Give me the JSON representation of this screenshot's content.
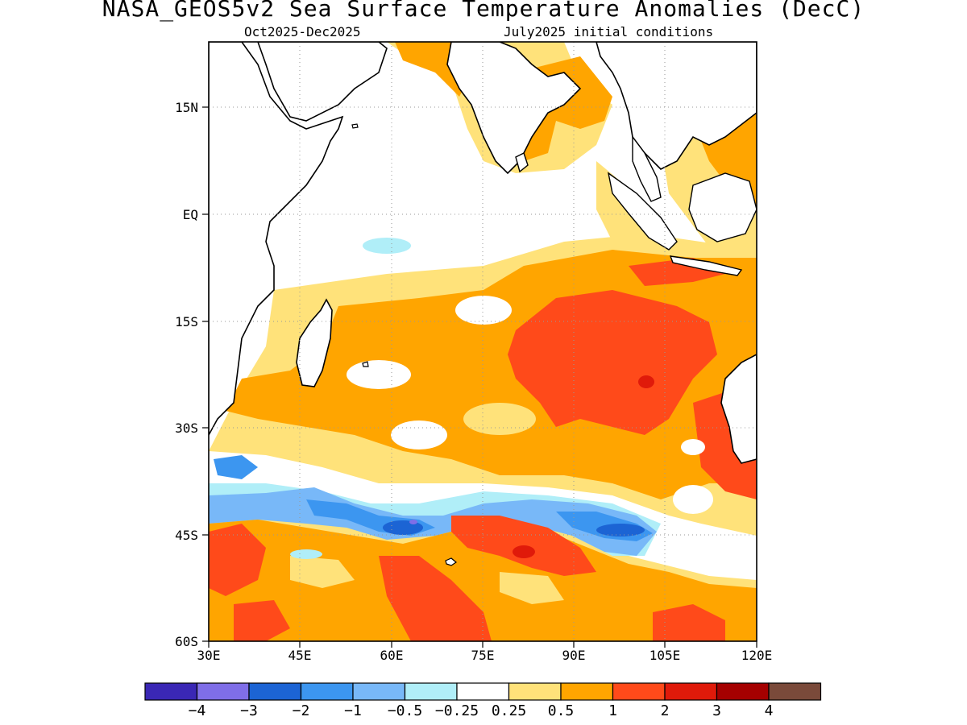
{
  "title": "NASA_GEOS5v2 Sea Surface Temperature Anomalies (DecC)",
  "subtitle_left": "Oct2025-Dec2025",
  "subtitle_right": "July2025 initial conditions",
  "axes": {
    "lat_labels": [
      "15N",
      "EQ",
      "15S",
      "30S",
      "45S",
      "60S"
    ],
    "lon_labels": [
      "30E",
      "45E",
      "60E",
      "75E",
      "90E",
      "105E",
      "120E"
    ],
    "lat_range": [
      -60,
      24
    ],
    "lon_range": [
      30,
      120
    ],
    "grid": "dotted"
  },
  "colorbar": {
    "colors": [
      "#3a27b5",
      "#7f6ee8",
      "#1c64d4",
      "#3c96f0",
      "#78b8f8",
      "#b0eef8",
      "#ffffff",
      "#ffe27a",
      "#ffa500",
      "#ff4a1a",
      "#e01a0a",
      "#a50000",
      "#7a4a3a"
    ],
    "labels": [
      "-4",
      "-3",
      "-2",
      "-1",
      "-0.5",
      "-0.25",
      "0.25",
      "0.5",
      "1",
      "2",
      "3",
      "4"
    ]
  },
  "field_colors": {
    "land": "#ffffff",
    "coast": "#000000"
  }
}
